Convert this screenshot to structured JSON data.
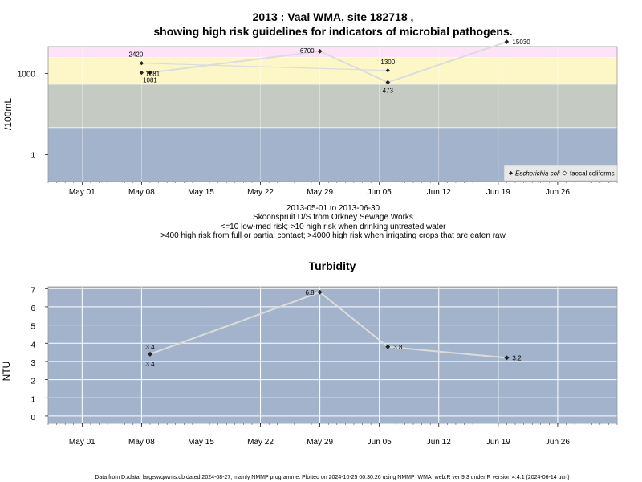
{
  "chart_data": [
    {
      "type": "line",
      "title_line1": "2013 : Vaal WMA, site 182718 ,",
      "title_line2": "showing high risk guidelines for indicators of microbial pathogens.",
      "ylabel": "/100mL",
      "yscale": "log",
      "ylim": [
        0.1,
        10000
      ],
      "yticks": [
        1,
        1000
      ],
      "ytick_labels": [
        "1",
        "1000"
      ],
      "xlim": [
        "2013-04-27",
        "2013-07-03"
      ],
      "xticks": [
        "2013-05-01",
        "2013-05-08",
        "2013-05-15",
        "2013-05-22",
        "2013-05-29",
        "2013-06-05",
        "2013-06-12",
        "2013-06-19",
        "2013-06-26"
      ],
      "xtick_labels": [
        "May 01",
        "May 08",
        "May 15",
        "May 22",
        "May 29",
        "Jun 05",
        "Jun 12",
        "Jun 19",
        "Jun 26"
      ],
      "risk_bands": [
        {
          "from": 0.1,
          "to": 10,
          "color": "#a3b3cc"
        },
        {
          "from": 10,
          "to": 400,
          "color": "#c5cbc3"
        },
        {
          "from": 400,
          "to": 4000,
          "color": "#fdf7c7"
        },
        {
          "from": 4000,
          "to": 10000,
          "color": "#fde2f8"
        }
      ],
      "series": [
        {
          "name": "Escherichia coli",
          "marker": "filled-diamond",
          "points": [
            {
              "x": "2013-05-09",
              "y": 1081,
              "label": "1081"
            },
            {
              "x": "2013-05-29",
              "y": 6700,
              "label": "6700"
            },
            {
              "x": "2013-06-06",
              "y": 473,
              "label": "473"
            },
            {
              "x": "2013-06-20",
              "y": 15030,
              "label": "15030"
            }
          ]
        },
        {
          "name": "faecal coliforms",
          "marker": "hollow-diamond",
          "points": [
            {
              "x": "2013-05-08",
              "y": 2420,
              "label": "2420"
            },
            {
              "x": "2013-05-08",
              "y": 1081,
              "label": "1081"
            },
            {
              "x": "2013-06-06",
              "y": 1300,
              "label": "1300"
            }
          ]
        }
      ],
      "legend_position": "bottom-right",
      "subtitle_lines": [
        "2013-05-01 to 2013-06-30",
        "Skoonspruit D/S from Orkney Sewage Works",
        "<=10 low-med risk; >10 high risk when drinking untreated water",
        ">400 high risk from full or partial contact; >4000 high risk when irrigating crops that are eaten raw"
      ]
    },
    {
      "type": "line",
      "title": "Turbidity",
      "ylabel": "NTU",
      "ylim": [
        -0.4,
        7.1
      ],
      "yticks": [
        0,
        1,
        2,
        3,
        4,
        5,
        6,
        7
      ],
      "ytick_labels": [
        "0",
        "1",
        "2",
        "3",
        "4",
        "5",
        "6",
        "7"
      ],
      "xlim": [
        "2013-04-27",
        "2013-07-03"
      ],
      "xticks": [
        "2013-05-01",
        "2013-05-08",
        "2013-05-15",
        "2013-05-22",
        "2013-05-29",
        "2013-06-05",
        "2013-06-12",
        "2013-06-19",
        "2013-06-26"
      ],
      "xtick_labels": [
        "May 01",
        "May 08",
        "May 15",
        "May 22",
        "May 29",
        "Jun 05",
        "Jun 12",
        "Jun 19",
        "Jun 26"
      ],
      "background": "#a3b3cc",
      "grid": true,
      "series": [
        {
          "marker": "filled-diamond",
          "points": [
            {
              "x": "2013-05-09",
              "y": 3.4,
              "label": "3.4",
              "label2": "3.4"
            },
            {
              "x": "2013-05-29",
              "y": 6.8,
              "label": "6.8"
            },
            {
              "x": "2013-06-06",
              "y": 3.8,
              "label": "3.8"
            },
            {
              "x": "2013-06-20",
              "y": 3.2,
              "label": "3.2"
            }
          ]
        }
      ]
    }
  ],
  "footer": "Data from D:/data_large/wq/wms.db dated 2024-08-27, mainly NMMP programme. Plotted on 2024-10-25 00:30:26 using NMMP_WMA_web.R ver 9.3 under R version 4.4.1 (2024-06-14 ucrt)"
}
